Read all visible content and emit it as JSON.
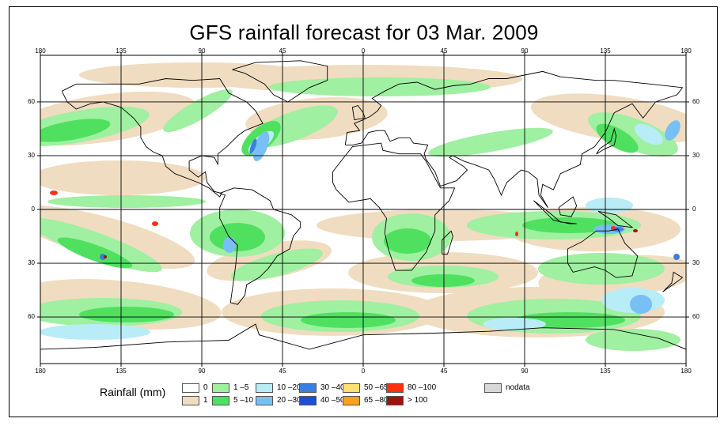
{
  "title": "GFS rainfall forecast for 03 Mar. 2009",
  "map": {
    "lon_ticks_top": [
      "180",
      "135",
      "90",
      "45",
      "0",
      "45",
      "90",
      "135",
      "180"
    ],
    "lon_ticks_bottom": [
      "180",
      "135",
      "90",
      "45",
      "0",
      "45",
      "90",
      "135",
      "180"
    ],
    "lat_ticks_left": [
      "60",
      "30",
      "0",
      "30",
      "60"
    ],
    "lat_ticks_right": [
      "60",
      "30",
      "0",
      "30",
      "60"
    ],
    "colors": {
      "ocean_bg": "#ffffff",
      "rain_1": "#f0dcc0",
      "rain_1_5": "#9ff0a0",
      "rain_5_10": "#50e060",
      "rain_10_20": "#b8ecf6",
      "rain_20_30": "#78bff5",
      "rain_30_40": "#3a7fe0",
      "rain_40_50": "#1d4fd0",
      "rain_50_65": "#ffe070",
      "rain_65_80": "#ffa020",
      "rain_80_100": "#ff3010",
      "rain_gt_100": "#a01010",
      "nodata": "#d8d8d8"
    }
  },
  "legend": {
    "title": "Rainfall (mm)",
    "items": [
      {
        "label": "0",
        "color": "#ffffff"
      },
      {
        "label": "1",
        "color": "#f0dcc0"
      },
      {
        "label": "1 –5",
        "color": "#9ff0a0"
      },
      {
        "label": "5 –10",
        "color": "#50e060"
      },
      {
        "label": "10 –20",
        "color": "#b8ecf6"
      },
      {
        "label": "20 –30",
        "color": "#78bff5"
      },
      {
        "label": "30 –40",
        "color": "#3a7fe0"
      },
      {
        "label": "40 –50",
        "color": "#1d4fd0"
      },
      {
        "label": "50 –65",
        "color": "#ffe070"
      },
      {
        "label": "65 –80",
        "color": "#ffa020"
      },
      {
        "label": "80 –100",
        "color": "#ff3010"
      },
      {
        "label": "> 100",
        "color": "#a01010"
      },
      {
        "label": "nodata",
        "color": "#d8d8d8"
      }
    ]
  }
}
